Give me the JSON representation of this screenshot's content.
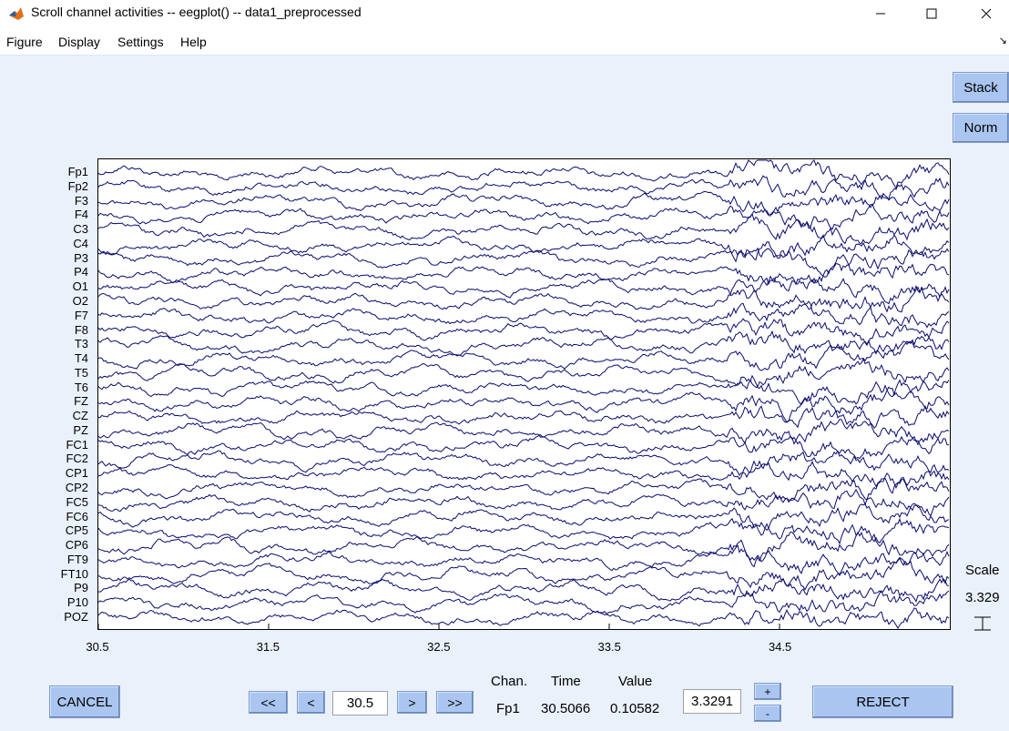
{
  "window": {
    "title": "Scroll channel activities -- eegplot() -- data1_preprocessed"
  },
  "menu": [
    "Figure",
    "Display",
    "Settings",
    "Help"
  ],
  "buttons": {
    "stack": "Stack",
    "norm": "Norm",
    "cancel": "CANCEL",
    "first": "<<",
    "prev": "<",
    "next": ">",
    "last": ">>",
    "plus": "+",
    "minus": "-",
    "reject": "REJECT"
  },
  "channels": [
    "Fp1",
    "Fp2",
    "F3",
    "F4",
    "C3",
    "C4",
    "P3",
    "P4",
    "O1",
    "O2",
    "F7",
    "F8",
    "T3",
    "T4",
    "T5",
    "T6",
    "FZ",
    "CZ",
    "PZ",
    "FC1",
    "FC2",
    "CP1",
    "CP2",
    "FC5",
    "FC6",
    "CP5",
    "CP6",
    "FT9",
    "FT10",
    "P9",
    "P10",
    "POZ"
  ],
  "time_axis": {
    "start": 30.5,
    "end": 35.5,
    "ticks": [
      "30.5",
      "31.5",
      "32.5",
      "33.5",
      "34.5"
    ]
  },
  "scale": {
    "label": "Scale",
    "value": "3.329"
  },
  "navigation": {
    "time_value": "30.5"
  },
  "readout": {
    "chan_header": "Chan.",
    "time_header": "Time",
    "value_header": "Value",
    "chan": "Fp1",
    "time": "30.5066",
    "value": "0.10582"
  },
  "scale_field": "3.3291",
  "colors": {
    "trace": "#0a0a6e",
    "background": "#eaf1fb",
    "button": "#a9c5f0"
  }
}
